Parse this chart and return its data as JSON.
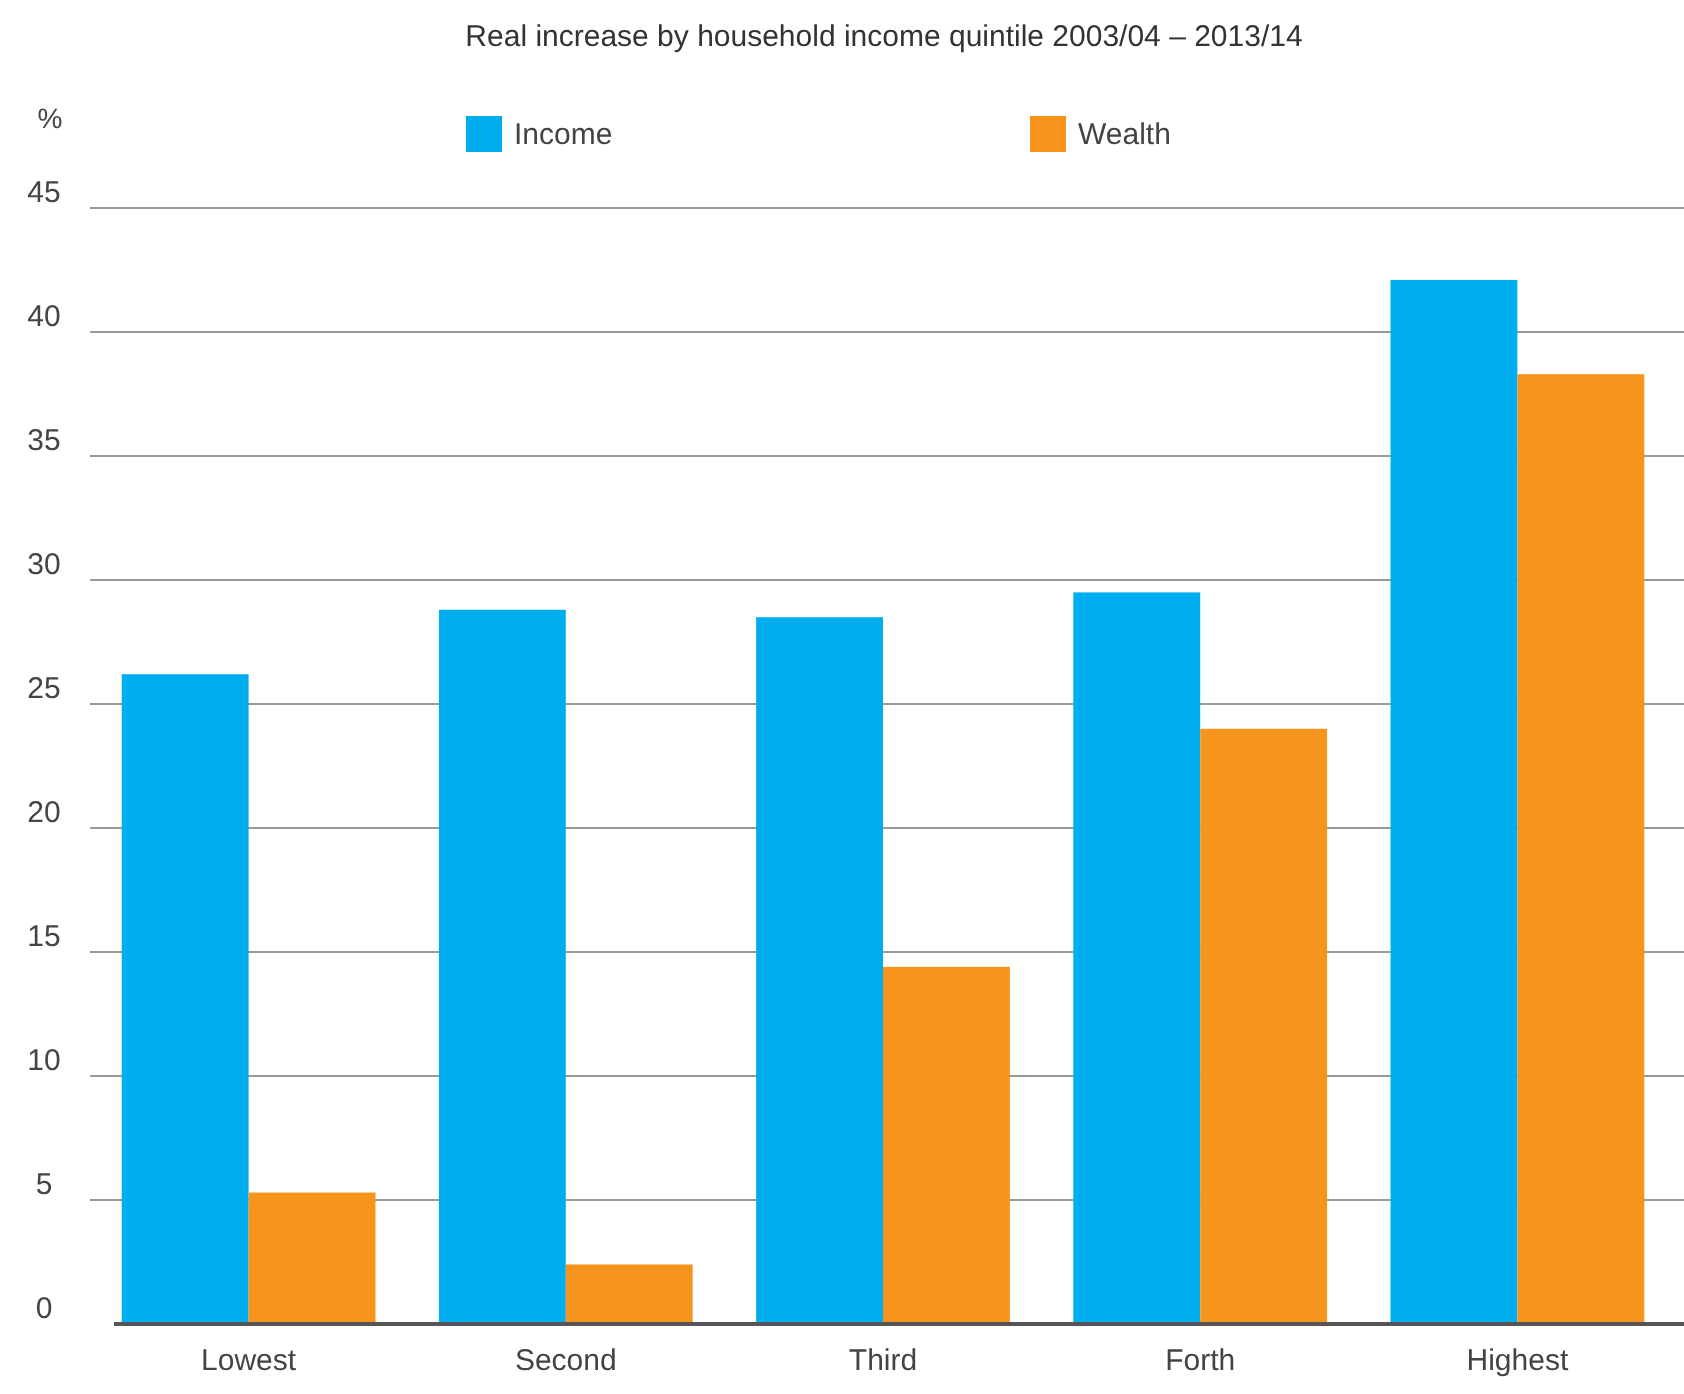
{
  "chart_data": {
    "type": "bar",
    "title": "Real increase by household income quintile 2003/04 – 2013/14",
    "ylabel": "%",
    "categories": [
      "Lowest",
      "Second",
      "Third",
      "Forth",
      "Highest"
    ],
    "series": [
      {
        "name": "Income",
        "color": "#00aeef",
        "values": [
          26.2,
          28.8,
          28.5,
          29.5,
          42.1
        ]
      },
      {
        "name": "Wealth",
        "color": "#f7941d",
        "values": [
          5.3,
          2.4,
          14.4,
          24.0,
          38.3
        ]
      }
    ],
    "ylim": [
      0,
      45
    ],
    "yticks": [
      0,
      5,
      10,
      15,
      20,
      25,
      30,
      35,
      40,
      45
    ],
    "grid": "y",
    "legend": "top"
  }
}
